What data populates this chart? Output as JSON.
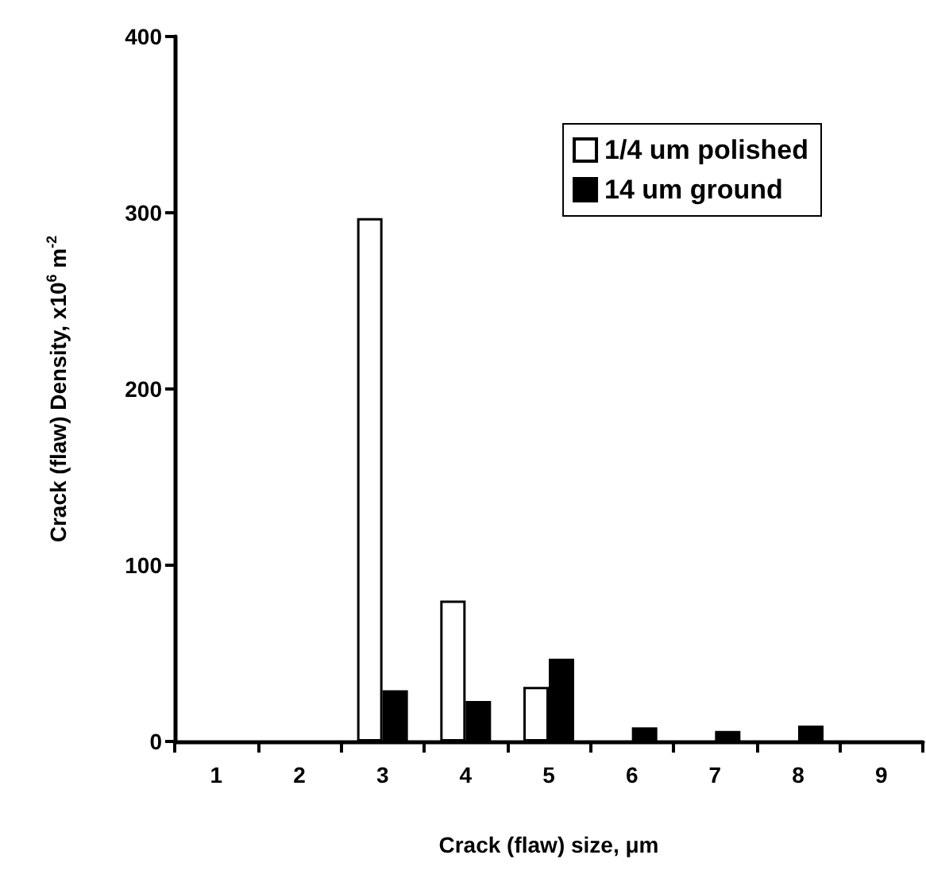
{
  "chart_data": {
    "type": "bar",
    "xlabel": "Crack (flaw) size, μm",
    "ylabel": "Crack (flaw) Density, x10$^{6}$ m$^{-2}$",
    "categories": [
      "1",
      "2",
      "3",
      "4",
      "5",
      "6",
      "7",
      "8",
      "9"
    ],
    "series": [
      {
        "name": "1/4 um polished",
        "color": "#ffffff",
        "values": [
          null,
          null,
          297,
          80,
          31,
          null,
          null,
          null,
          null
        ]
      },
      {
        "name": "14 um ground",
        "color": "#000000",
        "values": [
          null,
          null,
          29,
          23,
          47,
          8,
          6,
          9,
          null
        ]
      }
    ],
    "ylim": [
      0,
      400
    ],
    "yticks": [
      0,
      100,
      200,
      300,
      400
    ],
    "grid": false,
    "legend": "top right"
  }
}
